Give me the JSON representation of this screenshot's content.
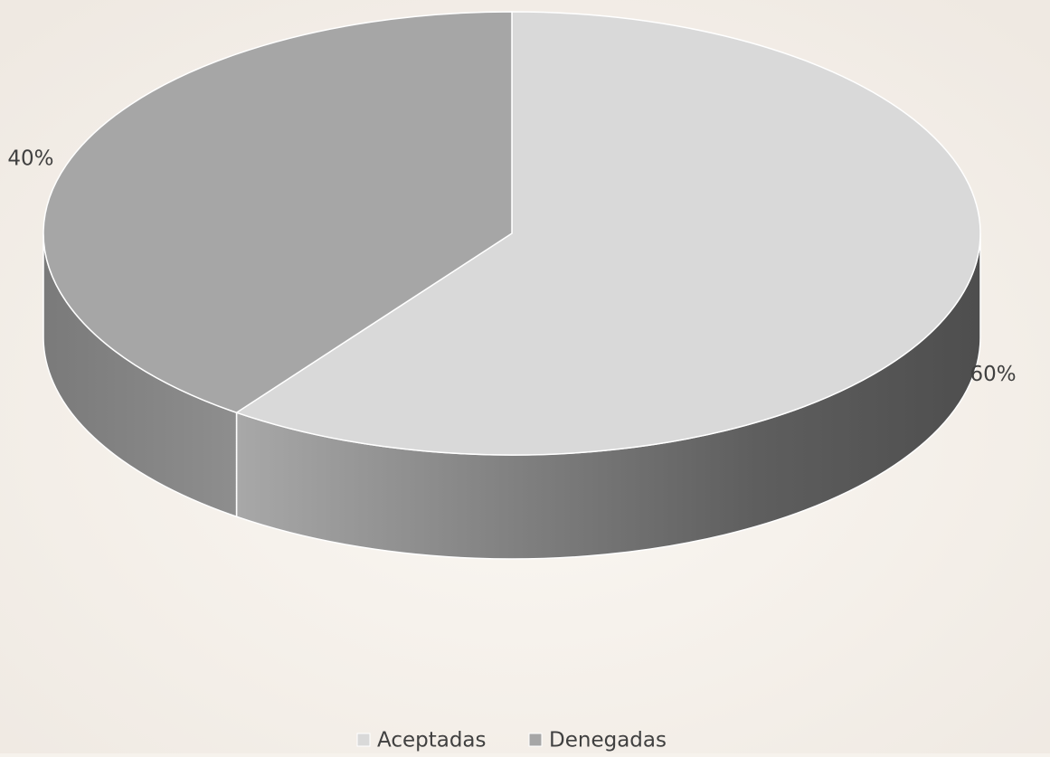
{
  "chart_data": {
    "type": "pie",
    "categories": [
      "Aceptadas",
      "Denegadas"
    ],
    "values": [
      60,
      40
    ],
    "value_labels": [
      "60%",
      "40%"
    ],
    "colors": [
      "#d9d9d9",
      "#a6a6a6"
    ],
    "legend": "bottom"
  }
}
